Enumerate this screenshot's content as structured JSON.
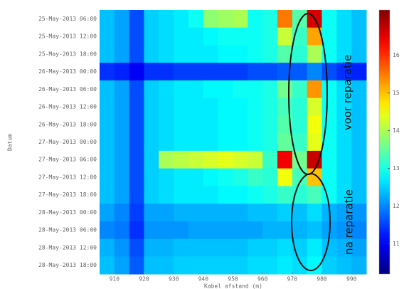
{
  "chart_data": {
    "type": "heatmap",
    "colormap": "jet",
    "xlabel": "Kabel afstand (m)",
    "ylabel": "Datum",
    "annotations": [
      "voor reparatie",
      "na reparatie"
    ],
    "x": [
      907.5,
      912.5,
      917.5,
      922.5,
      927.5,
      932.5,
      937.5,
      942.5,
      947.5,
      952.5,
      957.5,
      962.5,
      967.5,
      972.5,
      977.5,
      982.5,
      987.5,
      992.5
    ],
    "xlim": [
      905,
      995
    ],
    "xticks": [
      910,
      920,
      930,
      940,
      950,
      960,
      970,
      980,
      990
    ],
    "categories": [
      "25-May-2013 06:00",
      "25-May-2013 12:00",
      "25-May-2013 18:00",
      "26-May-2013 00:00",
      "26-May-2013 06:00",
      "26-May-2013 12:00",
      "26-May-2013 18:00",
      "27-May-2013 00:00",
      "27-May-2013 06:00",
      "27-May-2013 12:00",
      "27-May-2013 18:00",
      "28-May-2013 00:00",
      "28-May-2013 06:00",
      "28-May-2013 12:00",
      "28-May-2013 18:00"
    ],
    "clim": [
      10.2,
      17.2
    ],
    "cticks": [
      16,
      15,
      14,
      13,
      12,
      11
    ],
    "z": [
      [
        12.4,
        12.2,
        11.6,
        12.5,
        12.6,
        12.7,
        12.9,
        13.8,
        13.9,
        14.0,
        12.9,
        13.0,
        15.5,
        13.4,
        16.6,
        12.9,
        12.6,
        12.4
      ],
      [
        12.4,
        12.2,
        11.6,
        12.5,
        12.6,
        12.7,
        12.7,
        12.8,
        12.9,
        12.9,
        12.9,
        13.0,
        14.2,
        13.2,
        15.2,
        12.9,
        12.6,
        12.4
      ],
      [
        12.4,
        12.2,
        11.6,
        12.5,
        12.6,
        12.7,
        12.7,
        12.7,
        12.8,
        12.8,
        12.9,
        13.0,
        13.4,
        13.1,
        14.0,
        12.9,
        12.6,
        12.4
      ],
      [
        11.4,
        11.3,
        11.0,
        11.4,
        11.4,
        11.5,
        11.5,
        11.5,
        11.5,
        11.5,
        11.6,
        11.6,
        11.7,
        11.7,
        12.0,
        11.6,
        11.4,
        11.3
      ],
      [
        12.4,
        12.2,
        11.6,
        12.5,
        12.6,
        12.7,
        12.7,
        12.8,
        12.8,
        12.9,
        12.9,
        13.0,
        13.6,
        13.2,
        15.3,
        12.9,
        12.6,
        12.4
      ],
      [
        12.4,
        12.2,
        11.6,
        12.5,
        12.6,
        12.7,
        12.7,
        12.7,
        12.8,
        12.8,
        12.9,
        13.0,
        13.3,
        13.1,
        14.3,
        12.9,
        12.6,
        12.4
      ],
      [
        12.4,
        12.2,
        11.6,
        12.5,
        12.6,
        12.7,
        12.7,
        12.7,
        12.8,
        12.8,
        12.9,
        13.0,
        13.4,
        13.1,
        14.5,
        12.9,
        12.6,
        12.4
      ],
      [
        12.4,
        12.2,
        11.6,
        12.5,
        12.6,
        12.7,
        12.7,
        12.7,
        12.8,
        12.8,
        12.9,
        13.0,
        13.5,
        13.2,
        14.4,
        12.9,
        12.6,
        12.4
      ],
      [
        12.4,
        12.2,
        11.6,
        12.5,
        14.0,
        14.1,
        14.2,
        14.3,
        14.4,
        14.3,
        14.2,
        13.2,
        16.4,
        13.6,
        16.7,
        12.9,
        12.6,
        12.4
      ],
      [
        12.4,
        12.2,
        11.6,
        12.5,
        12.6,
        12.7,
        12.7,
        12.8,
        12.9,
        13.0,
        13.2,
        13.1,
        14.5,
        13.3,
        15.0,
        12.9,
        12.6,
        12.4
      ],
      [
        12.4,
        12.2,
        11.6,
        12.5,
        12.6,
        12.7,
        12.7,
        12.7,
        12.8,
        12.8,
        12.9,
        13.0,
        13.2,
        13.1,
        13.3,
        12.9,
        12.6,
        12.4
      ],
      [
        12.2,
        12.0,
        11.5,
        12.2,
        12.2,
        12.3,
        12.3,
        12.3,
        12.3,
        12.3,
        12.4,
        12.4,
        12.5,
        12.4,
        12.6,
        12.3,
        12.2,
        12.1
      ],
      [
        12.0,
        11.9,
        11.4,
        12.1,
        12.1,
        12.1,
        12.2,
        12.2,
        12.2,
        12.2,
        12.2,
        12.3,
        12.3,
        12.3,
        12.4,
        12.2,
        12.1,
        12.0
      ],
      [
        12.3,
        12.1,
        11.6,
        12.3,
        12.3,
        12.4,
        12.4,
        12.4,
        12.4,
        12.4,
        12.5,
        12.5,
        12.6,
        12.5,
        12.7,
        12.4,
        12.3,
        12.2
      ],
      [
        12.4,
        12.2,
        11.7,
        12.4,
        12.4,
        12.5,
        12.5,
        12.5,
        12.5,
        12.5,
        12.6,
        12.6,
        12.7,
        12.6,
        12.8,
        12.5,
        12.4,
        12.3
      ]
    ]
  }
}
